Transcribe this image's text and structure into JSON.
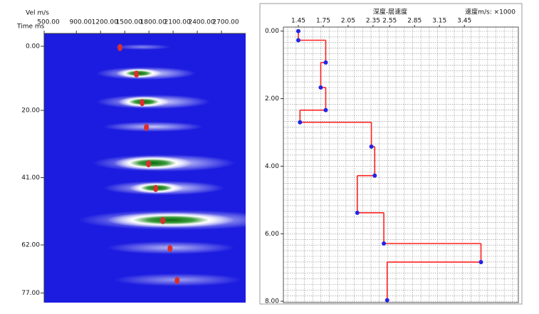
{
  "chart_data": [
    {
      "type": "velocity-spectrum",
      "x_label": "Vel m/s",
      "y_label": "Time ms",
      "xlim": [
        500,
        3000
      ],
      "xticks": [
        {
          "value": 500,
          "label": "500.00"
        },
        {
          "value": 900,
          "label": "900.00"
        },
        {
          "value": 1200,
          "label": "1200.00"
        },
        {
          "value": 1500,
          "label": "1500.00"
        },
        {
          "value": 1800,
          "label": "1800.00"
        },
        {
          "value": 2100,
          "label": "2100.00"
        },
        {
          "value": 2400,
          "label": "2400.00"
        },
        {
          "value": 2700,
          "label": "2700.00"
        }
      ],
      "ylim": [
        -4,
        80
      ],
      "yticks": [
        {
          "value": 0,
          "label": "0.00"
        },
        {
          "value": 20,
          "label": "20.00"
        },
        {
          "value": 41,
          "label": "41.00"
        },
        {
          "value": 62,
          "label": "62.00"
        },
        {
          "value": 77,
          "label": "77.00"
        }
      ],
      "background_color": "#1c1ce0",
      "color": "#d83030",
      "x": [
        1441,
        1645,
        1716,
        1769,
        1795,
        1884,
        1973,
        2062,
        2150
      ],
      "values": [
        0.4,
        8.7,
        17.6,
        25.3,
        36.7,
        44.4,
        54.4,
        63.1,
        73.1
      ]
    },
    {
      "type": "step",
      "title": "深度-层速度",
      "x_label": "速度m/s: ×1000",
      "xlim": [
        1.27,
        4.1
      ],
      "xticks": [
        1.45,
        1.75,
        2.05,
        2.35,
        2.55,
        2.85,
        3.15,
        3.45
      ],
      "ylim": [
        -0.12,
        8.04
      ],
      "yticks": [
        {
          "value": 0,
          "label": "0.00"
        },
        {
          "value": 2,
          "label": "2.00"
        },
        {
          "value": 4,
          "label": "4.00"
        },
        {
          "value": 6,
          "label": "6.00"
        },
        {
          "value": 8,
          "label": "8.00"
        }
      ],
      "line_color": "#ff2020",
      "point_color": "#2424e8",
      "depths": [
        0,
        0.27,
        0.93,
        1.67,
        2.34,
        2.7,
        3.42,
        4.28,
        5.38,
        6.29,
        6.84,
        7.97
      ],
      "velocity": [
        1.45,
        1.78,
        1.72,
        1.78,
        1.47,
        2.33,
        2.37,
        2.16,
        2.48,
        3.65,
        2.52
      ]
    }
  ]
}
